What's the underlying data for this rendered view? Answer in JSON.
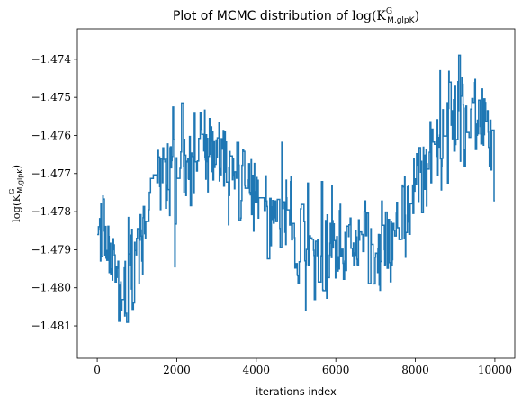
{
  "chart_data": {
    "type": "line",
    "title": "Plot of MCMC distribution of log(K^G_{M,glpK})",
    "title_prefix": "Plot of MCMC distribution of ",
    "title_math_base": "log(K",
    "title_math_sup": "G",
    "title_math_sub": "M,glpK",
    "title_math_close": ")",
    "xlabel": "iterations index",
    "ylabel": "log(K^G_{M,glpK})",
    "ylabel_base": "log(K",
    "ylabel_sup": "G",
    "ylabel_sub": "M,glpK",
    "ylabel_close": ")",
    "xlim": [
      -500,
      10500
    ],
    "ylim": [
      -1.48185,
      -1.4732
    ],
    "x_ticks": [
      0,
      2000,
      4000,
      6000,
      8000,
      10000
    ],
    "x_tick_labels": [
      "0",
      "2000",
      "4000",
      "6000",
      "8000",
      "10000"
    ],
    "y_ticks": [
      -1.481,
      -1.48,
      -1.479,
      -1.478,
      -1.477,
      -1.476,
      -1.475,
      -1.474
    ],
    "y_tick_labels": [
      "−1.481",
      "−1.480",
      "−1.479",
      "−1.478",
      "−1.477",
      "−1.476",
      "−1.475",
      "−1.474"
    ],
    "line_color": "#1f77b4",
    "anchors": [
      [
        0,
        -1.4786
      ],
      [
        200,
        -1.4787
      ],
      [
        400,
        -1.4793
      ],
      [
        600,
        -1.48
      ],
      [
        750,
        -1.4803
      ],
      [
        1000,
        -1.4788
      ],
      [
        1300,
        -1.4778
      ],
      [
        1600,
        -1.4772
      ],
      [
        1900,
        -1.4768
      ],
      [
        2200,
        -1.4767
      ],
      [
        2500,
        -1.4764
      ],
      [
        2800,
        -1.4762
      ],
      [
        3100,
        -1.4767
      ],
      [
        3400,
        -1.4771
      ],
      [
        3700,
        -1.4773
      ],
      [
        4000,
        -1.4776
      ],
      [
        4300,
        -1.4779
      ],
      [
        4600,
        -1.478
      ],
      [
        4900,
        -1.4782
      ],
      [
        5200,
        -1.4787
      ],
      [
        5500,
        -1.479
      ],
      [
        5800,
        -1.4789
      ],
      [
        6100,
        -1.4792
      ],
      [
        6400,
        -1.4789
      ],
      [
        6700,
        -1.4786
      ],
      [
        7000,
        -1.479
      ],
      [
        7300,
        -1.479
      ],
      [
        7600,
        -1.4784
      ],
      [
        7900,
        -1.4775
      ],
      [
        8200,
        -1.477
      ],
      [
        8500,
        -1.4762
      ],
      [
        8800,
        -1.4759
      ],
      [
        9100,
        -1.4753
      ],
      [
        9400,
        -1.4752
      ],
      [
        9600,
        -1.4754
      ],
      [
        9800,
        -1.4758
      ],
      [
        10000,
        -1.4767
      ]
    ],
    "num_samples": 10000,
    "noise_amplitude": 0.0012,
    "hold_probability": 0.55,
    "seed": 12345
  }
}
